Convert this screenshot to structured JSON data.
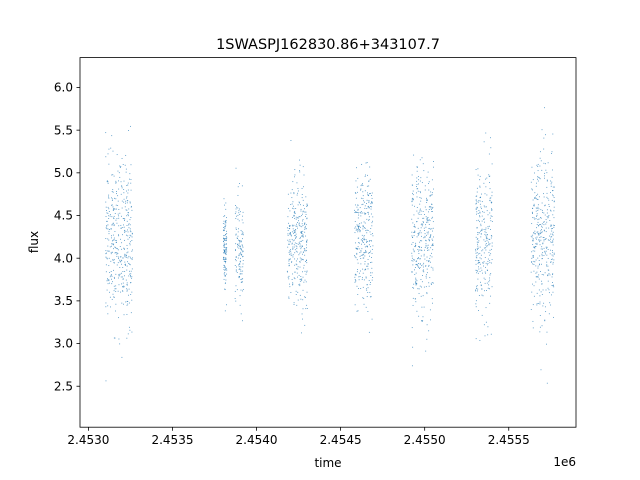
{
  "chart_data": {
    "type": "scatter",
    "title": "1SWASPJ162830.86+343107.7",
    "xlabel": "time",
    "ylabel": "flux",
    "x_offset_label": "1e6",
    "xlim": [
      2.45295,
      2.4559
    ],
    "ylim": [
      2.02,
      6.35
    ],
    "x_ticks": [
      2.453,
      2.4535,
      2.454,
      2.4545,
      2.455,
      2.4555
    ],
    "x_tick_labels": [
      "2.4530",
      "2.4535",
      "2.4540",
      "2.4545",
      "2.4550",
      "2.4555"
    ],
    "y_ticks": [
      2.5,
      3.0,
      3.5,
      4.0,
      4.5,
      5.0,
      5.5,
      6.0
    ],
    "y_tick_labels": [
      "2.5",
      "3.0",
      "3.5",
      "4.0",
      "4.5",
      "5.0",
      "5.5",
      "6.0"
    ],
    "grid": false,
    "marker_color": "#1f77b4",
    "series": [
      {
        "observing_seasons": [
          {
            "x_start": 2.4531,
            "x_end": 2.45326,
            "flux_center": 4.2,
            "flux_low": 3.5,
            "flux_high": 5.0
          },
          {
            "x_start": 2.4538,
            "x_end": 2.45382,
            "flux_center": 4.1,
            "flux_low": 3.7,
            "flux_high": 4.5
          },
          {
            "x_start": 2.45387,
            "x_end": 2.45392,
            "flux_center": 4.1,
            "flux_low": 3.6,
            "flux_high": 4.6
          },
          {
            "x_start": 2.45418,
            "x_end": 2.4543,
            "flux_center": 4.2,
            "flux_low": 3.6,
            "flux_high": 4.8
          },
          {
            "x_start": 2.45458,
            "x_end": 2.45469,
            "flux_center": 4.2,
            "flux_low": 3.6,
            "flux_high": 4.9
          },
          {
            "x_start": 2.45492,
            "x_end": 2.45505,
            "flux_center": 4.2,
            "flux_low": 3.5,
            "flux_high": 4.9
          },
          {
            "x_start": 2.4553,
            "x_end": 2.4554,
            "flux_center": 4.2,
            "flux_low": 3.5,
            "flux_high": 5.0
          },
          {
            "x_start": 2.45563,
            "x_end": 2.45577,
            "flux_center": 4.2,
            "flux_low": 3.4,
            "flux_high": 5.0
          }
        ]
      }
    ]
  }
}
